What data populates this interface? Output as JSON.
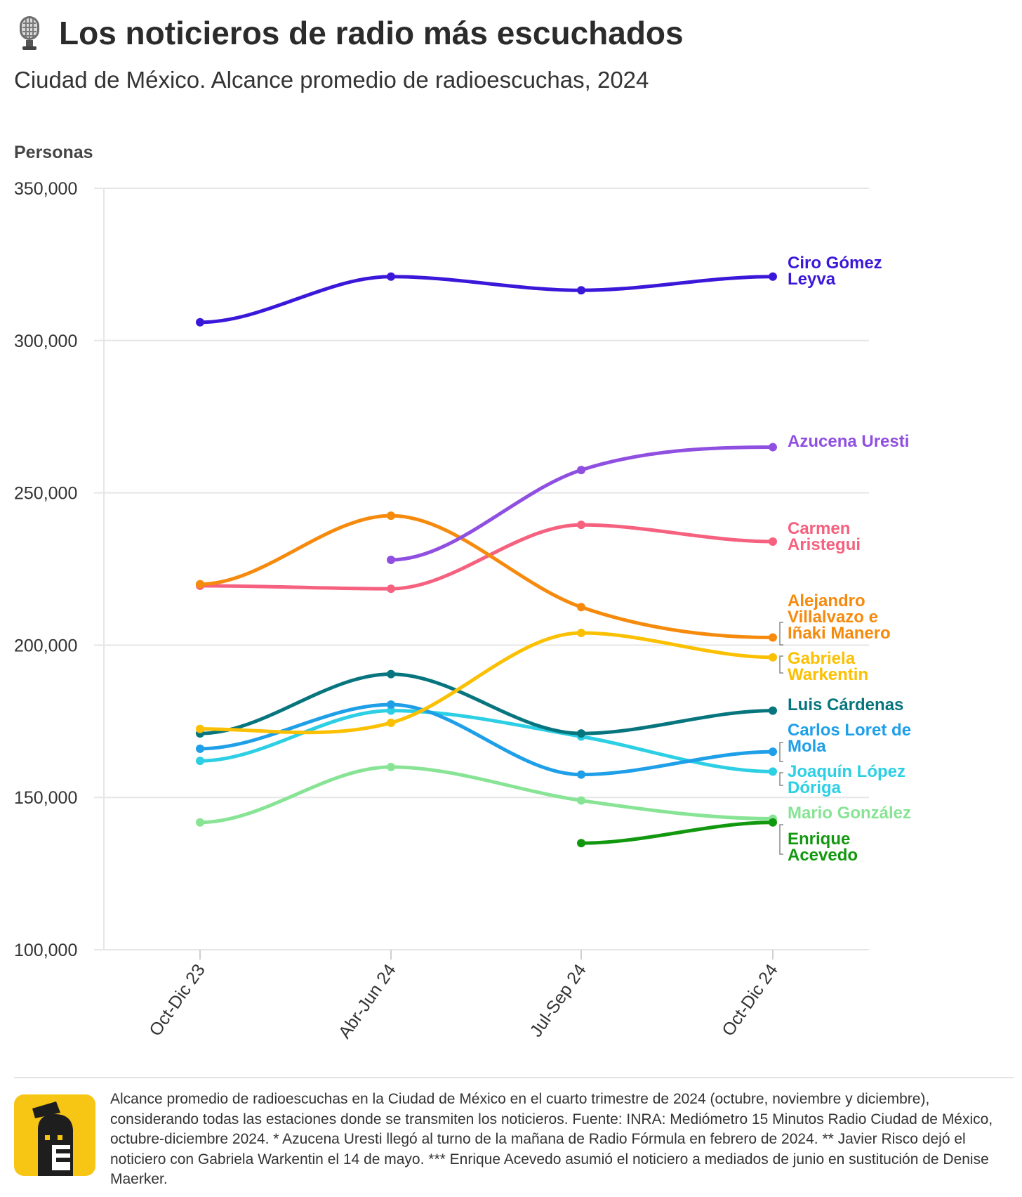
{
  "header": {
    "title": "Los noticieros de radio más escuchados",
    "subtitle": "Ciudad de México. Alcance promedio de radioescuchas, 2024",
    "title_icon": "microphone-icon"
  },
  "chart_data": {
    "type": "line",
    "title": "Los noticieros de radio más escuchados",
    "subtitle": "Ciudad de México. Alcance promedio de radioescuchas, 2024",
    "xlabel": "",
    "ylabel": "Personas",
    "ylim": [
      100000,
      350000
    ],
    "yticks": [
      100000,
      150000,
      200000,
      250000,
      300000,
      350000
    ],
    "ytick_labels": [
      "100,000",
      "150,000",
      "200,000",
      "250,000",
      "300,000",
      "350,000"
    ],
    "grid": true,
    "categories": [
      "Oct-Dic 23",
      "Abr-Jun 24",
      "Jul-Sep 24",
      "Oct-Dic 24"
    ],
    "series": [
      {
        "name": "Mario González",
        "label_lines": [
          "Mario González"
        ],
        "color": "#88e495",
        "values": [
          141800,
          160000,
          149000,
          143000
        ]
      },
      {
        "name": "Enrique Acevedo",
        "label_lines": [
          "Enrique",
          "Acevedo"
        ],
        "color": "#12980f",
        "values": [
          null,
          null,
          135000,
          141800
        ]
      },
      {
        "name": "Joaquín López Dóriga",
        "label_lines": [
          "Joaquín López",
          "Dóriga"
        ],
        "color": "#2dcfe4",
        "values": [
          162000,
          178500,
          170000,
          158500
        ]
      },
      {
        "name": "Carlos Loret de Mola",
        "label_lines": [
          "Carlos Loret de",
          "Mola"
        ],
        "color": "#1e9fe8",
        "values": [
          166000,
          180500,
          157500,
          165000
        ]
      },
      {
        "name": "Luis Cárdenas",
        "label_lines": [
          "Luis Cárdenas"
        ],
        "color": "#07757e",
        "values": [
          171000,
          190500,
          171000,
          178500
        ]
      },
      {
        "name": "Gabriela Warkentin",
        "label_lines": [
          "Gabriela",
          "Warkentin"
        ],
        "color": "#fbc002",
        "values": [
          172500,
          174500,
          204000,
          196000
        ]
      },
      {
        "name": "Carmen Aristegui",
        "label_lines": [
          "Carmen",
          "Aristegui"
        ],
        "color": "#f5617e",
        "values": [
          219500,
          218500,
          239500,
          234000
        ]
      },
      {
        "name": "Alejandro Villalvazo e Iñaki Manero",
        "label_lines": [
          "Alejandro",
          "Villalvazo e",
          "Iñaki Manero"
        ],
        "color": "#f68a0d",
        "values": [
          220000,
          242500,
          212500,
          202500
        ]
      },
      {
        "name": "Azucena Uresti",
        "label_lines": [
          "Azucena Uresti"
        ],
        "color": "#8f4fe0",
        "values": [
          null,
          228000,
          257500,
          265000
        ]
      },
      {
        "name": "Ciro Gómez Leyva",
        "label_lines": [
          "Ciro Gómez",
          "Leyva"
        ],
        "color": "#3b18d9",
        "values": [
          306000,
          321000,
          316500,
          321000
        ]
      }
    ]
  },
  "footer": {
    "note": "Alcance promedio de radioescuchas en la Ciudad de México en el cuarto trimestre de 2024 (octubre, noviembre y diciembre), considerando todas las estaciones donde se transmiten los noticieros. Fuente: INRA: Mediómetro 15 Minutos Radio Ciudad de México, octubre-diciembre 2024. * Azucena Uresti llegó al turno de la mañana de Radio Fórmula en febrero de 2024. ** Javier Risco dejó el noticiero con Gabriela Warkentin el 14 de mayo. *** Enrique Acevedo asumió el noticiero a mediados de junio en sustitución de Denise Maerker.",
    "logo_icon": "publisher-logo-icon"
  }
}
